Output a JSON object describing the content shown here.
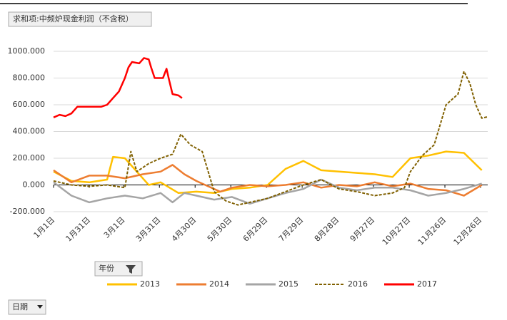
{
  "chart_data": {
    "type": "line",
    "title": "求和项:中频炉现金利润（不含税）",
    "filter_button": "年份",
    "axis_button": "日期",
    "xlim": [
      0,
      365
    ],
    "xticks": [
      {
        "value": 0,
        "label": "1月1日"
      },
      {
        "value": 30,
        "label": "1月31日"
      },
      {
        "value": 59,
        "label": "3月1日"
      },
      {
        "value": 89,
        "label": "3月31日"
      },
      {
        "value": 119,
        "label": "4月30日"
      },
      {
        "value": 149,
        "label": "5月30日"
      },
      {
        "value": 179,
        "label": "6月29日"
      },
      {
        "value": 209,
        "label": "7月29日"
      },
      {
        "value": 239,
        "label": "8月28日"
      },
      {
        "value": 269,
        "label": "9月27日"
      },
      {
        "value": 299,
        "label": "10月27日"
      },
      {
        "value": 329,
        "label": "11月26日"
      },
      {
        "value": 359,
        "label": "12月26日"
      }
    ],
    "ylim": [
      -200,
      1000
    ],
    "yticks": [
      {
        "value": -200,
        "label": "-200.000"
      },
      {
        "value": 0,
        "label": "0.000"
      },
      {
        "value": 200,
        "label": "200.000"
      },
      {
        "value": 400,
        "label": "400.000"
      },
      {
        "value": 600,
        "label": "600.000"
      },
      {
        "value": 800,
        "label": "800.000"
      },
      {
        "value": 1000,
        "label": "1000.000"
      }
    ],
    "grid": true,
    "legend": "bottom",
    "series": [
      {
        "name": "2013",
        "color": "#FFC000",
        "dashed": false,
        "x": [
          0,
          15,
          30,
          45,
          50,
          60,
          70,
          80,
          90,
          105,
          120,
          135,
          150,
          165,
          180,
          195,
          210,
          225,
          240,
          255,
          270,
          285,
          300,
          315,
          330,
          345,
          360
        ],
        "values": [
          100,
          30,
          20,
          40,
          210,
          200,
          100,
          0,
          20,
          -60,
          -50,
          -60,
          -30,
          -20,
          0,
          120,
          180,
          110,
          100,
          90,
          80,
          60,
          200,
          220,
          250,
          240,
          110
        ]
      },
      {
        "name": "2014",
        "color": "#ED7D31",
        "dashed": false,
        "x": [
          0,
          15,
          30,
          45,
          60,
          75,
          90,
          100,
          110,
          120,
          130,
          140,
          150,
          165,
          180,
          195,
          210,
          225,
          240,
          255,
          270,
          285,
          300,
          315,
          330,
          345,
          360
        ],
        "values": [
          110,
          20,
          70,
          70,
          50,
          80,
          100,
          150,
          80,
          30,
          -10,
          -50,
          -20,
          0,
          -10,
          0,
          20,
          -20,
          0,
          -10,
          20,
          -10,
          10,
          -30,
          -40,
          -80,
          0
        ]
      },
      {
        "name": "2015",
        "color": "#A5A5A5",
        "dashed": false,
        "x": [
          0,
          15,
          30,
          45,
          60,
          75,
          90,
          100,
          110,
          120,
          135,
          150,
          165,
          180,
          195,
          210,
          225,
          240,
          255,
          270,
          285,
          300,
          315,
          330,
          345,
          360
        ],
        "values": [
          20,
          -80,
          -130,
          -100,
          -80,
          -100,
          -60,
          -130,
          -60,
          -80,
          -110,
          -90,
          -140,
          -100,
          -60,
          -30,
          40,
          -20,
          -40,
          -20,
          -20,
          -40,
          -80,
          -60,
          -30,
          10
        ]
      },
      {
        "name": "2016",
        "color": "#806000",
        "dashed": true,
        "x": [
          0,
          15,
          30,
          45,
          60,
          65,
          70,
          80,
          90,
          100,
          107,
          115,
          125,
          135,
          145,
          155,
          165,
          180,
          195,
          210,
          225,
          240,
          255,
          270,
          285,
          295,
          300,
          310,
          320,
          330,
          340,
          345,
          350,
          355,
          360,
          365
        ],
        "values": [
          30,
          0,
          -10,
          0,
          -20,
          250,
          100,
          160,
          200,
          230,
          380,
          300,
          250,
          -50,
          -120,
          -150,
          -130,
          -100,
          -50,
          0,
          40,
          -30,
          -50,
          -80,
          -60,
          -20,
          100,
          220,
          300,
          600,
          680,
          850,
          760,
          600,
          500,
          510
        ]
      },
      {
        "name": "2017",
        "color": "#FF0000",
        "dashed": false,
        "x": [
          0,
          5,
          10,
          15,
          20,
          40,
          45,
          50,
          55,
          60,
          63,
          66,
          72,
          76,
          80,
          82,
          85,
          92,
          95,
          97,
          100,
          105,
          108
        ],
        "values": [
          505,
          525,
          515,
          535,
          585,
          585,
          600,
          650,
          700,
          800,
          880,
          920,
          910,
          950,
          940,
          880,
          800,
          800,
          870,
          790,
          680,
          670,
          650
        ]
      }
    ]
  }
}
